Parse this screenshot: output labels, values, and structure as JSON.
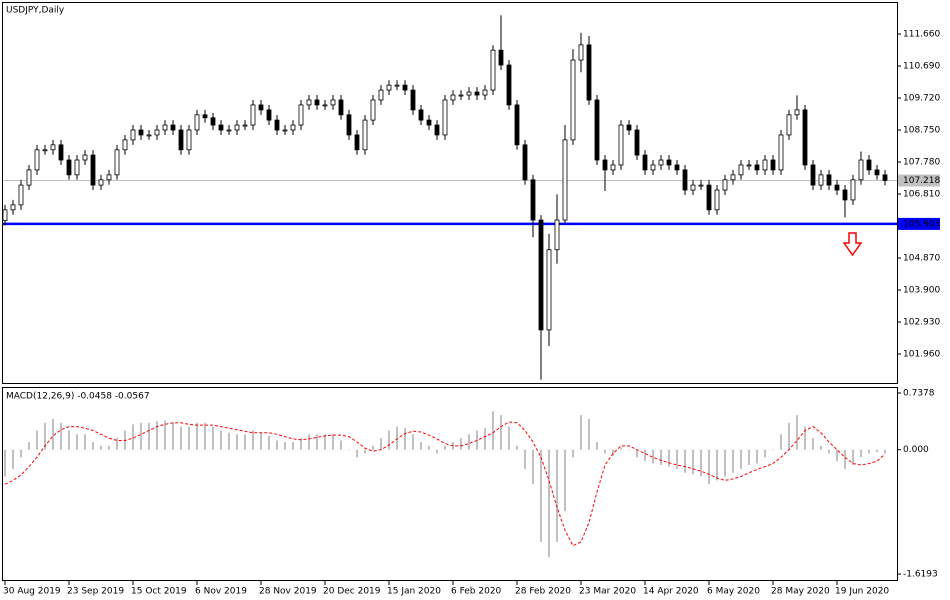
{
  "chart_data": [
    {
      "type": "candlestick",
      "title": "USDJPY,Daily",
      "categories": [
        "30 Aug 2019",
        null,
        null,
        null,
        null,
        null,
        null,
        null,
        "23 Sep 2019",
        null,
        null,
        null,
        null,
        null,
        null,
        null,
        "15 Oct 2019",
        null,
        null,
        null,
        null,
        null,
        null,
        null,
        "6 Nov 2019",
        null,
        null,
        null,
        null,
        null,
        null,
        null,
        "28 Nov 2019",
        null,
        null,
        null,
        null,
        null,
        null,
        null,
        "20 Dec 2019",
        null,
        null,
        null,
        null,
        null,
        null,
        null,
        "15 Jan 2020",
        null,
        null,
        null,
        null,
        null,
        null,
        null,
        "6 Feb 2020",
        null,
        null,
        null,
        null,
        null,
        null,
        null,
        "28 Feb 2020",
        null,
        null,
        null,
        null,
        null,
        null,
        null,
        "23 Mar 2020",
        null,
        null,
        null,
        null,
        null,
        null,
        null,
        "14 Apr 2020",
        null,
        null,
        null,
        null,
        null,
        null,
        null,
        "6 May 2020",
        null,
        null,
        null,
        null,
        null,
        null,
        null,
        "28 May 2020",
        null,
        null,
        null,
        null,
        null,
        null,
        null,
        "19 Jun 2020",
        null,
        null,
        null,
        null,
        null,
        null
      ],
      "open": [
        106.0,
        106.33,
        106.48,
        107.08,
        107.54,
        108.15,
        108.15,
        108.3,
        107.84,
        107.39,
        107.84,
        107.99,
        107.08,
        107.24,
        107.39,
        108.15,
        108.45,
        108.75,
        108.6,
        108.6,
        108.75,
        108.9,
        108.75,
        108.15,
        108.75,
        109.21,
        109.12,
        108.9,
        108.75,
        108.75,
        108.9,
        108.9,
        109.51,
        109.36,
        109.05,
        108.75,
        108.75,
        108.9,
        109.51,
        109.66,
        109.51,
        109.51,
        109.66,
        109.21,
        108.6,
        108.15,
        109.05,
        109.66,
        109.96,
        110.11,
        110.11,
        109.96,
        109.36,
        109.05,
        108.9,
        108.6,
        109.66,
        109.81,
        109.81,
        109.9,
        109.81,
        109.96,
        111.17,
        110.72,
        109.51,
        108.3,
        107.24,
        106.02,
        102.69,
        105.12,
        106.02,
        108.45,
        110.87,
        111.33,
        109.66,
        107.84,
        107.54,
        107.69,
        108.9,
        108.75,
        107.99,
        107.54,
        107.69,
        107.84,
        107.69,
        107.54,
        106.93,
        107.08,
        107.08,
        106.33,
        106.93,
        107.24,
        107.39,
        107.69,
        107.69,
        107.54,
        107.84,
        107.54,
        108.6,
        109.21,
        109.36,
        107.69,
        107.08,
        107.39,
        107.08,
        106.93,
        106.63,
        107.24,
        107.84,
        107.54,
        107.39
      ],
      "high": [
        106.48,
        106.63,
        107.23,
        107.69,
        108.3,
        108.3,
        108.45,
        108.45,
        107.99,
        107.99,
        108.14,
        108.14,
        107.39,
        107.54,
        108.3,
        108.6,
        108.9,
        108.9,
        108.75,
        108.9,
        109.05,
        109.05,
        108.9,
        108.9,
        109.36,
        109.36,
        109.27,
        109.05,
        108.9,
        109.05,
        109.05,
        109.66,
        109.66,
        109.51,
        109.2,
        108.9,
        109.05,
        109.66,
        109.81,
        109.81,
        109.66,
        109.81,
        109.81,
        109.36,
        108.75,
        109.2,
        109.81,
        110.11,
        110.26,
        110.26,
        110.26,
        110.11,
        109.51,
        109.2,
        109.05,
        109.81,
        109.96,
        109.96,
        110.05,
        110.05,
        110.11,
        111.32,
        112.23,
        110.87,
        109.66,
        108.45,
        107.39,
        106.17,
        105.6,
        106.8,
        108.9,
        111.2,
        111.7,
        111.6,
        109.81,
        107.99,
        107.84,
        109.05,
        109.05,
        108.9,
        108.14,
        107.84,
        107.99,
        107.99,
        107.84,
        107.69,
        107.23,
        107.23,
        107.23,
        107.08,
        107.39,
        107.54,
        107.84,
        107.84,
        107.84,
        107.99,
        107.99,
        108.75,
        109.36,
        109.8,
        109.51,
        107.84,
        107.54,
        107.54,
        107.23,
        107.08,
        107.39,
        108.1,
        107.99,
        107.69,
        107.54
      ],
      "low": [
        105.85,
        106.18,
        106.33,
        106.93,
        107.39,
        108.0,
        108.0,
        107.69,
        107.24,
        107.24,
        107.69,
        106.93,
        106.93,
        107.09,
        107.24,
        108.0,
        108.3,
        108.45,
        108.45,
        108.45,
        108.6,
        108.6,
        108.0,
        108.0,
        108.6,
        108.97,
        108.75,
        108.6,
        108.6,
        108.6,
        108.75,
        108.75,
        109.21,
        108.9,
        108.6,
        108.6,
        108.6,
        108.75,
        109.36,
        109.36,
        109.36,
        109.36,
        109.06,
        108.45,
        108.0,
        108.0,
        108.9,
        109.51,
        109.81,
        109.96,
        109.81,
        109.21,
        108.9,
        108.75,
        108.45,
        108.45,
        109.51,
        109.66,
        109.66,
        109.66,
        109.66,
        109.81,
        110.57,
        109.36,
        108.15,
        107.09,
        105.5,
        101.18,
        102.2,
        104.7,
        105.87,
        108.3,
        110.5,
        109.51,
        107.69,
        106.9,
        107.39,
        107.54,
        108.6,
        107.84,
        107.39,
        107.39,
        107.54,
        107.54,
        107.39,
        106.78,
        106.78,
        106.93,
        106.18,
        106.18,
        106.78,
        107.09,
        107.24,
        107.54,
        107.39,
        107.39,
        107.39,
        107.39,
        108.45,
        109.06,
        107.54,
        106.93,
        106.93,
        106.93,
        106.78,
        106.1,
        106.48,
        107.09,
        107.39,
        107.24,
        107.07
      ],
      "close": [
        106.33,
        106.48,
        107.08,
        107.54,
        108.15,
        108.15,
        108.3,
        107.84,
        107.39,
        107.84,
        107.99,
        107.08,
        107.24,
        107.39,
        108.15,
        108.45,
        108.75,
        108.6,
        108.6,
        108.75,
        108.9,
        108.75,
        108.15,
        108.75,
        109.21,
        109.12,
        108.9,
        108.75,
        108.75,
        108.9,
        108.9,
        109.51,
        109.36,
        109.05,
        108.75,
        108.75,
        108.9,
        109.51,
        109.66,
        109.51,
        109.51,
        109.66,
        109.21,
        108.6,
        108.15,
        109.05,
        109.66,
        109.96,
        110.11,
        110.11,
        109.96,
        109.36,
        109.05,
        108.9,
        108.6,
        109.66,
        109.81,
        109.81,
        109.9,
        109.81,
        109.96,
        111.17,
        110.72,
        109.51,
        108.3,
        107.24,
        106.02,
        102.69,
        105.12,
        106.02,
        108.45,
        110.87,
        111.33,
        109.66,
        107.84,
        107.54,
        107.69,
        108.9,
        108.75,
        107.99,
        107.54,
        107.69,
        107.84,
        107.69,
        107.54,
        106.93,
        107.08,
        107.08,
        106.33,
        106.93,
        107.24,
        107.39,
        107.69,
        107.69,
        107.54,
        107.84,
        107.54,
        108.6,
        109.21,
        109.36,
        107.69,
        107.08,
        107.39,
        107.08,
        106.93,
        106.63,
        107.24,
        107.84,
        107.54,
        107.39,
        107.22
      ],
      "up_color": "#ffffff",
      "down_color": "#000000",
      "edge_color": "#000000",
      "ylim": [
        101.08,
        112.6
      ],
      "yticks": [
        {
          "value": 111.66,
          "label": "111.660"
        },
        {
          "value": 110.69,
          "label": "110.690"
        },
        {
          "value": 109.72,
          "label": "109.720"
        },
        {
          "value": 108.75,
          "label": "108.750"
        },
        {
          "value": 107.78,
          "label": "107.780"
        },
        {
          "value": 106.81,
          "label": "106.810"
        },
        {
          "value": 104.87,
          "label": "104.870"
        },
        {
          "value": 103.9,
          "label": "103.900"
        },
        {
          "value": 102.93,
          "label": "102.930"
        },
        {
          "value": 101.96,
          "label": "101.960"
        }
      ],
      "price_lines": [
        {
          "value": 107.218,
          "color": "#c0c0c0"
        },
        {
          "value": 105.903,
          "color": "#0000ff"
        }
      ],
      "grid": false
    },
    {
      "type": "macd",
      "title": "MACD(12,26,9) -0.0458 -0.0567",
      "series": [
        {
          "style": "bar",
          "color": "#c0c0c0",
          "values": [
            -0.35,
            -0.25,
            -0.1,
            0.1,
            0.25,
            0.35,
            0.4,
            0.35,
            0.25,
            0.2,
            0.2,
            0.1,
            0.05,
            0.05,
            0.15,
            0.25,
            0.33,
            0.35,
            0.35,
            0.37,
            0.38,
            0.35,
            0.3,
            0.3,
            0.35,
            0.35,
            0.3,
            0.25,
            0.22,
            0.2,
            0.2,
            0.25,
            0.22,
            0.18,
            0.12,
            0.1,
            0.1,
            0.15,
            0.2,
            0.2,
            0.2,
            0.2,
            0.12,
            0.0,
            -0.1,
            -0.05,
            0.05,
            0.15,
            0.25,
            0.3,
            0.28,
            0.2,
            0.1,
            0.05,
            -0.05,
            0.05,
            0.1,
            0.15,
            0.2,
            0.25,
            0.28,
            0.5,
            0.45,
            0.3,
            0.05,
            -0.25,
            -0.45,
            -1.2,
            -1.4,
            -1.2,
            -0.8,
            -0.1,
            0.45,
            0.4,
            0.1,
            -0.05,
            -0.08,
            0.02,
            0.0,
            -0.1,
            -0.15,
            -0.18,
            -0.2,
            -0.22,
            -0.25,
            -0.3,
            -0.32,
            -0.35,
            -0.45,
            -0.4,
            -0.35,
            -0.3,
            -0.25,
            -0.2,
            -0.18,
            -0.1,
            0.0,
            0.2,
            0.35,
            0.45,
            0.3,
            0.15,
            0.05,
            -0.05,
            -0.15,
            -0.25,
            -0.2,
            -0.1,
            -0.05,
            -0.03,
            -0.0458
          ]
        },
        {
          "style": "dashed-line",
          "color": "#ff0000",
          "values": [
            -0.45,
            -0.4,
            -0.33,
            -0.22,
            -0.1,
            0.05,
            0.18,
            0.26,
            0.3,
            0.3,
            0.28,
            0.25,
            0.2,
            0.15,
            0.12,
            0.12,
            0.15,
            0.2,
            0.25,
            0.3,
            0.33,
            0.35,
            0.35,
            0.33,
            0.32,
            0.32,
            0.32,
            0.3,
            0.28,
            0.26,
            0.24,
            0.22,
            0.22,
            0.22,
            0.2,
            0.17,
            0.14,
            0.13,
            0.14,
            0.16,
            0.18,
            0.19,
            0.19,
            0.17,
            0.1,
            0.02,
            -0.02,
            0.0,
            0.06,
            0.14,
            0.21,
            0.24,
            0.23,
            0.19,
            0.14,
            0.08,
            0.05,
            0.05,
            0.08,
            0.12,
            0.17,
            0.22,
            0.3,
            0.36,
            0.35,
            0.25,
            0.1,
            -0.1,
            -0.4,
            -0.75,
            -1.05,
            -1.25,
            -1.2,
            -0.95,
            -0.55,
            -0.2,
            -0.05,
            0.05,
            0.05,
            0.0,
            -0.05,
            -0.1,
            -0.14,
            -0.17,
            -0.2,
            -0.22,
            -0.25,
            -0.28,
            -0.32,
            -0.37,
            -0.4,
            -0.38,
            -0.35,
            -0.3,
            -0.26,
            -0.22,
            -0.18,
            -0.1,
            0.0,
            0.12,
            0.25,
            0.3,
            0.22,
            0.1,
            0.0,
            -0.1,
            -0.18,
            -0.2,
            -0.18,
            -0.15,
            -0.0567
          ]
        }
      ],
      "ylim": [
        -1.697,
        0.803
      ],
      "yticks": [
        0.7378,
        {
          "value": 0,
          "label": "0.000"
        },
        -1.6193
      ]
    }
  ]
}
